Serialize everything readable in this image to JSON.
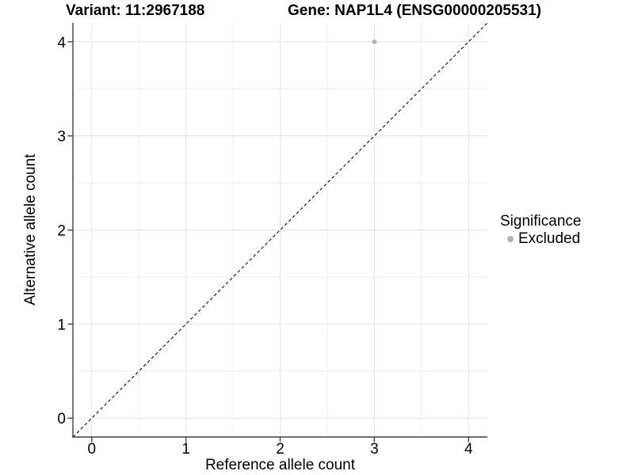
{
  "figure": {
    "title_variant": "Variant: 11:2967188",
    "title_gene": "Gene: NAP1L4 (ENSG00000205531)"
  },
  "axes": {
    "x_label": "Reference allele count",
    "y_label": "Alternative allele count"
  },
  "legend": {
    "title": "Significance",
    "items": [
      {
        "label": "Excluded",
        "marker": "circle",
        "color": "#b3b3b3"
      }
    ]
  },
  "chart_data": {
    "type": "scatter",
    "title": "Variant: 11:2967188   Gene: NAP1L4 (ENSG00000205531)",
    "xlabel": "Reference allele count",
    "ylabel": "Alternative allele count",
    "xlim": [
      -0.2,
      4.2
    ],
    "ylim": [
      -0.2,
      4.2
    ],
    "x_ticks": [
      0,
      1,
      2,
      3,
      4
    ],
    "y_ticks": [
      0,
      1,
      2,
      3,
      4
    ],
    "grid": "major+minor",
    "legend_position": "right",
    "series": [
      {
        "name": "Excluded",
        "color": "#b3b3b3",
        "points": [
          {
            "x": 3,
            "y": 4
          }
        ]
      }
    ],
    "reference_line": {
      "equation": "y=x",
      "style": "dashed",
      "color": "#0a0a0a"
    }
  },
  "colors": {
    "background": "#ffffff",
    "grid_major": "#e3e3e3",
    "grid_minor": "#efefef",
    "axis_line": "#3f3f3f",
    "tick_text": "#000000",
    "point": "#b3b3b3"
  }
}
